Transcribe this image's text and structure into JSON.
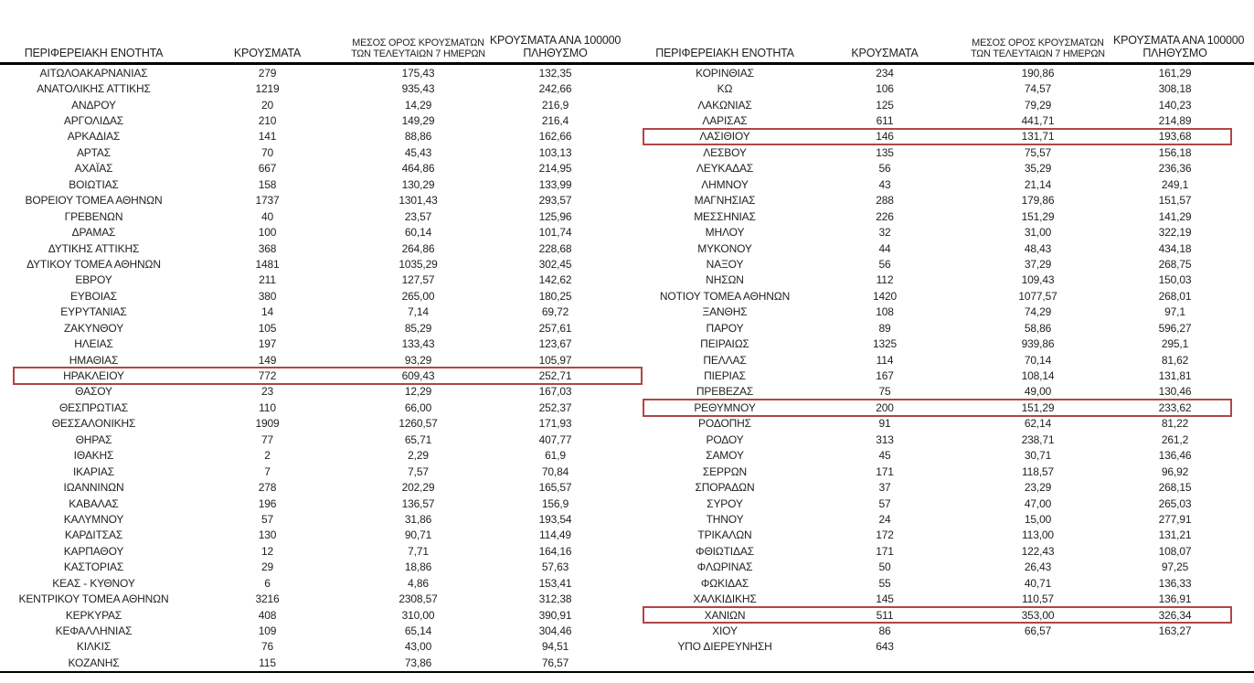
{
  "colors": {
    "highlight_border": "#b04646",
    "rule": "#000000",
    "text": "#1f1f1f",
    "background": "#ffffff"
  },
  "table": {
    "headers": {
      "region": "ΠΕΡΙΦΕΡΕΙΑΚΗ ΕΝΟΤΗΤΑ",
      "cases": "ΚΡΟΥΣΜΑΤΑ",
      "avg7_line1": "ΜΕΣΟΣ ΟΡΟΣ ΚΡΟΥΣΜΑΤΩΝ",
      "avg7_line2": "ΤΩΝ ΤΕΛΕΥΤΑΙΩΝ 7 ΗΜΕΡΩΝ",
      "per100k_line1": "ΚΡΟΥΣΜΑΤΑ ΑΝΑ 100000",
      "per100k_line2": "ΠΛΗΘΥΣΜΟ"
    },
    "left_rows": [
      {
        "region": "ΑΙΤΩΛΟΑΚΑΡΝΑΝΙΑΣ",
        "cases": "279",
        "avg7": "175,43",
        "per100k": "132,35",
        "highlighted": false
      },
      {
        "region": "ΑΝΑΤΟΛΙΚΗΣ ΑΤΤΙΚΗΣ",
        "cases": "1219",
        "avg7": "935,43",
        "per100k": "242,66",
        "highlighted": false
      },
      {
        "region": "ΑΝΔΡΟΥ",
        "cases": "20",
        "avg7": "14,29",
        "per100k": "216,9",
        "highlighted": false
      },
      {
        "region": "ΑΡΓΟΛΙΔΑΣ",
        "cases": "210",
        "avg7": "149,29",
        "per100k": "216,4",
        "highlighted": false
      },
      {
        "region": "ΑΡΚΑΔΙΑΣ",
        "cases": "141",
        "avg7": "88,86",
        "per100k": "162,66",
        "highlighted": false
      },
      {
        "region": "ΑΡΤΑΣ",
        "cases": "70",
        "avg7": "45,43",
        "per100k": "103,13",
        "highlighted": false
      },
      {
        "region": "ΑΧΑΪΑΣ",
        "cases": "667",
        "avg7": "464,86",
        "per100k": "214,95",
        "highlighted": false
      },
      {
        "region": "ΒΟΙΩΤΙΑΣ",
        "cases": "158",
        "avg7": "130,29",
        "per100k": "133,99",
        "highlighted": false
      },
      {
        "region": "ΒΟΡΕΙΟΥ ΤΟΜΕΑ ΑΘΗΝΩΝ",
        "cases": "1737",
        "avg7": "1301,43",
        "per100k": "293,57",
        "highlighted": false
      },
      {
        "region": "ΓΡΕΒΕΝΩΝ",
        "cases": "40",
        "avg7": "23,57",
        "per100k": "125,96",
        "highlighted": false
      },
      {
        "region": "ΔΡΑΜΑΣ",
        "cases": "100",
        "avg7": "60,14",
        "per100k": "101,74",
        "highlighted": false
      },
      {
        "region": "ΔΥΤΙΚΗΣ ΑΤΤΙΚΗΣ",
        "cases": "368",
        "avg7": "264,86",
        "per100k": "228,68",
        "highlighted": false
      },
      {
        "region": "ΔΥΤΙΚΟΥ ΤΟΜΕΑ ΑΘΗΝΩΝ",
        "cases": "1481",
        "avg7": "1035,29",
        "per100k": "302,45",
        "highlighted": false
      },
      {
        "region": "ΕΒΡΟΥ",
        "cases": "211",
        "avg7": "127,57",
        "per100k": "142,62",
        "highlighted": false
      },
      {
        "region": "ΕΥΒΟΙΑΣ",
        "cases": "380",
        "avg7": "265,00",
        "per100k": "180,25",
        "highlighted": false
      },
      {
        "region": "ΕΥΡΥΤΑΝΙΑΣ",
        "cases": "14",
        "avg7": "7,14",
        "per100k": "69,72",
        "highlighted": false
      },
      {
        "region": "ΖΑΚΥΝΘΟΥ",
        "cases": "105",
        "avg7": "85,29",
        "per100k": "257,61",
        "highlighted": false
      },
      {
        "region": "ΗΛΕΙΑΣ",
        "cases": "197",
        "avg7": "133,43",
        "per100k": "123,67",
        "highlighted": false
      },
      {
        "region": "ΗΜΑΘΙΑΣ",
        "cases": "149",
        "avg7": "93,29",
        "per100k": "105,97",
        "highlighted": false
      },
      {
        "region": "ΗΡΑΚΛΕΙΟΥ",
        "cases": "772",
        "avg7": "609,43",
        "per100k": "252,71",
        "highlighted": true
      },
      {
        "region": "ΘΑΣΟΥ",
        "cases": "23",
        "avg7": "12,29",
        "per100k": "167,03",
        "highlighted": false
      },
      {
        "region": "ΘΕΣΠΡΩΤΙΑΣ",
        "cases": "110",
        "avg7": "66,00",
        "per100k": "252,37",
        "highlighted": false
      },
      {
        "region": "ΘΕΣΣΑΛΟΝΙΚΗΣ",
        "cases": "1909",
        "avg7": "1260,57",
        "per100k": "171,93",
        "highlighted": false
      },
      {
        "region": "ΘΗΡΑΣ",
        "cases": "77",
        "avg7": "65,71",
        "per100k": "407,77",
        "highlighted": false
      },
      {
        "region": "ΙΘΑΚΗΣ",
        "cases": "2",
        "avg7": "2,29",
        "per100k": "61,9",
        "highlighted": false
      },
      {
        "region": "ΙΚΑΡΙΑΣ",
        "cases": "7",
        "avg7": "7,57",
        "per100k": "70,84",
        "highlighted": false
      },
      {
        "region": "ΙΩΑΝΝΙΝΩΝ",
        "cases": "278",
        "avg7": "202,29",
        "per100k": "165,57",
        "highlighted": false
      },
      {
        "region": "ΚΑΒΑΛΑΣ",
        "cases": "196",
        "avg7": "136,57",
        "per100k": "156,9",
        "highlighted": false
      },
      {
        "region": "ΚΑΛΥΜΝΟΥ",
        "cases": "57",
        "avg7": "31,86",
        "per100k": "193,54",
        "highlighted": false
      },
      {
        "region": "ΚΑΡΔΙΤΣΑΣ",
        "cases": "130",
        "avg7": "90,71",
        "per100k": "114,49",
        "highlighted": false
      },
      {
        "region": "ΚΑΡΠΑΘΟΥ",
        "cases": "12",
        "avg7": "7,71",
        "per100k": "164,16",
        "highlighted": false
      },
      {
        "region": "ΚΑΣΤΟΡΙΑΣ",
        "cases": "29",
        "avg7": "18,86",
        "per100k": "57,63",
        "highlighted": false
      },
      {
        "region": "ΚΕΑΣ - ΚΥΘΝΟΥ",
        "cases": "6",
        "avg7": "4,86",
        "per100k": "153,41",
        "highlighted": false
      },
      {
        "region": "ΚΕΝΤΡΙΚΟΥ ΤΟΜΕΑ ΑΘΗΝΩΝ",
        "cases": "3216",
        "avg7": "2308,57",
        "per100k": "312,38",
        "highlighted": false
      },
      {
        "region": "ΚΕΡΚΥΡΑΣ",
        "cases": "408",
        "avg7": "310,00",
        "per100k": "390,91",
        "highlighted": false
      },
      {
        "region": "ΚΕΦΑΛΛΗΝΙΑΣ",
        "cases": "109",
        "avg7": "65,14",
        "per100k": "304,46",
        "highlighted": false
      },
      {
        "region": "ΚΙΛΚΙΣ",
        "cases": "76",
        "avg7": "43,00",
        "per100k": "94,51",
        "highlighted": false
      },
      {
        "region": "ΚΟΖΑΝΗΣ",
        "cases": "115",
        "avg7": "73,86",
        "per100k": "76,57",
        "highlighted": false
      }
    ],
    "right_rows": [
      {
        "region": "ΚΟΡΙΝΘΙΑΣ",
        "cases": "234",
        "avg7": "190,86",
        "per100k": "161,29",
        "highlighted": false
      },
      {
        "region": "ΚΩ",
        "cases": "106",
        "avg7": "74,57",
        "per100k": "308,18",
        "highlighted": false
      },
      {
        "region": "ΛΑΚΩΝΙΑΣ",
        "cases": "125",
        "avg7": "79,29",
        "per100k": "140,23",
        "highlighted": false
      },
      {
        "region": "ΛΑΡΙΣΑΣ",
        "cases": "611",
        "avg7": "441,71",
        "per100k": "214,89",
        "highlighted": false
      },
      {
        "region": "ΛΑΣΙΘΙΟΥ",
        "cases": "146",
        "avg7": "131,71",
        "per100k": "193,68",
        "highlighted": true
      },
      {
        "region": "ΛΕΣΒΟΥ",
        "cases": "135",
        "avg7": "75,57",
        "per100k": "156,18",
        "highlighted": false
      },
      {
        "region": "ΛΕΥΚΑΔΑΣ",
        "cases": "56",
        "avg7": "35,29",
        "per100k": "236,36",
        "highlighted": false
      },
      {
        "region": "ΛΗΜΝΟΥ",
        "cases": "43",
        "avg7": "21,14",
        "per100k": "249,1",
        "highlighted": false
      },
      {
        "region": "ΜΑΓΝΗΣΙΑΣ",
        "cases": "288",
        "avg7": "179,86",
        "per100k": "151,57",
        "highlighted": false
      },
      {
        "region": "ΜΕΣΣΗΝΙΑΣ",
        "cases": "226",
        "avg7": "151,29",
        "per100k": "141,29",
        "highlighted": false
      },
      {
        "region": "ΜΗΛΟΥ",
        "cases": "32",
        "avg7": "31,00",
        "per100k": "322,19",
        "highlighted": false
      },
      {
        "region": "ΜΥΚΟΝΟΥ",
        "cases": "44",
        "avg7": "48,43",
        "per100k": "434,18",
        "highlighted": false
      },
      {
        "region": "ΝΑΞΟΥ",
        "cases": "56",
        "avg7": "37,29",
        "per100k": "268,75",
        "highlighted": false
      },
      {
        "region": "ΝΗΣΩΝ",
        "cases": "112",
        "avg7": "109,43",
        "per100k": "150,03",
        "highlighted": false
      },
      {
        "region": "ΝΟΤΙΟΥ ΤΟΜΕΑ ΑΘΗΝΩΝ",
        "cases": "1420",
        "avg7": "1077,57",
        "per100k": "268,01",
        "highlighted": false
      },
      {
        "region": "ΞΑΝΘΗΣ",
        "cases": "108",
        "avg7": "74,29",
        "per100k": "97,1",
        "highlighted": false
      },
      {
        "region": "ΠΑΡΟΥ",
        "cases": "89",
        "avg7": "58,86",
        "per100k": "596,27",
        "highlighted": false
      },
      {
        "region": "ΠΕΙΡΑΙΩΣ",
        "cases": "1325",
        "avg7": "939,86",
        "per100k": "295,1",
        "highlighted": false
      },
      {
        "region": "ΠΕΛΛΑΣ",
        "cases": "114",
        "avg7": "70,14",
        "per100k": "81,62",
        "highlighted": false
      },
      {
        "region": "ΠΙΕΡΙΑΣ",
        "cases": "167",
        "avg7": "108,14",
        "per100k": "131,81",
        "highlighted": false
      },
      {
        "region": "ΠΡΕΒΕΖΑΣ",
        "cases": "75",
        "avg7": "49,00",
        "per100k": "130,46",
        "highlighted": false
      },
      {
        "region": "ΡΕΘΥΜΝΟΥ",
        "cases": "200",
        "avg7": "151,29",
        "per100k": "233,62",
        "highlighted": true
      },
      {
        "region": "ΡΟΔΟΠΗΣ",
        "cases": "91",
        "avg7": "62,14",
        "per100k": "81,22",
        "highlighted": false
      },
      {
        "region": "ΡΟΔΟΥ",
        "cases": "313",
        "avg7": "238,71",
        "per100k": "261,2",
        "highlighted": false
      },
      {
        "region": "ΣΑΜΟΥ",
        "cases": "45",
        "avg7": "30,71",
        "per100k": "136,46",
        "highlighted": false
      },
      {
        "region": "ΣΕΡΡΩΝ",
        "cases": "171",
        "avg7": "118,57",
        "per100k": "96,92",
        "highlighted": false
      },
      {
        "region": "ΣΠΟΡΑΔΩΝ",
        "cases": "37",
        "avg7": "23,29",
        "per100k": "268,15",
        "highlighted": false
      },
      {
        "region": "ΣΥΡΟΥ",
        "cases": "57",
        "avg7": "47,00",
        "per100k": "265,03",
        "highlighted": false
      },
      {
        "region": "ΤΗΝΟΥ",
        "cases": "24",
        "avg7": "15,00",
        "per100k": "277,91",
        "highlighted": false
      },
      {
        "region": "ΤΡΙΚΑΛΩΝ",
        "cases": "172",
        "avg7": "113,00",
        "per100k": "131,21",
        "highlighted": false
      },
      {
        "region": "ΦΘΙΩΤΙΔΑΣ",
        "cases": "171",
        "avg7": "122,43",
        "per100k": "108,07",
        "highlighted": false
      },
      {
        "region": "ΦΛΩΡΙΝΑΣ",
        "cases": "50",
        "avg7": "26,43",
        "per100k": "97,25",
        "highlighted": false
      },
      {
        "region": "ΦΩΚΙΔΑΣ",
        "cases": "55",
        "avg7": "40,71",
        "per100k": "136,33",
        "highlighted": false
      },
      {
        "region": "ΧΑΛΚΙΔΙΚΗΣ",
        "cases": "145",
        "avg7": "110,57",
        "per100k": "136,91",
        "highlighted": false
      },
      {
        "region": "ΧΑΝΙΩΝ",
        "cases": "511",
        "avg7": "353,00",
        "per100k": "326,34",
        "highlighted": true
      },
      {
        "region": "ΧΙΟΥ",
        "cases": "86",
        "avg7": "66,57",
        "per100k": "163,27",
        "highlighted": false
      },
      {
        "region": "ΥΠΟ ΔΙΕΡΕΥΝΗΣΗ",
        "cases": "643",
        "avg7": "",
        "per100k": "",
        "highlighted": false
      }
    ]
  }
}
